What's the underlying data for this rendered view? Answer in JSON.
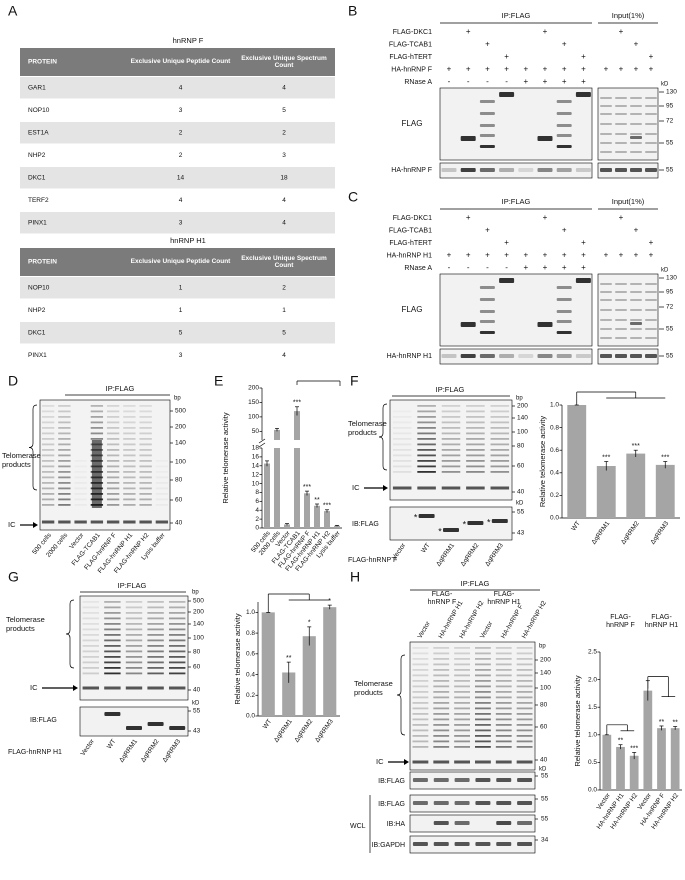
{
  "A": {
    "label": "A",
    "tables": [
      {
        "title": "hnRNP F",
        "header": [
          "PROTEIN",
          "Exclusive Unique Peptide Count",
          "Exclusive Unique Spectrum Count"
        ],
        "rows": [
          [
            "GAR1",
            4,
            4
          ],
          [
            "NOP10",
            3,
            5
          ],
          [
            "EST1A",
            2,
            2
          ],
          [
            "NHP2",
            2,
            3
          ],
          [
            "DKC1",
            14,
            18
          ],
          [
            "TERF2",
            4,
            4
          ],
          [
            "PINX1",
            3,
            4
          ]
        ]
      },
      {
        "title": "hnRNP H1",
        "header": [
          "PROTEIN",
          "Exclusive Unique Peptide Count",
          "Exclusive Unique Spectrum Count"
        ],
        "rows": [
          [
            "NOP10",
            1,
            2
          ],
          [
            "NHP2",
            1,
            1
          ],
          [
            "DKC1",
            5,
            5
          ],
          [
            "PINX1",
            3,
            4
          ]
        ]
      }
    ]
  },
  "B": {
    "label": "B",
    "ip": "IP:FLAG",
    "input": "Input(1%)",
    "conditions": [
      "FLAG-DKC1",
      "FLAG-TCAB1",
      "FLAG-hTERT",
      "HA-hnRNP F",
      "RNase A"
    ],
    "ip_signs": [
      [
        null,
        "+",
        null,
        null,
        null,
        "+",
        null,
        null
      ],
      [
        null,
        null,
        "+",
        null,
        null,
        null,
        "+",
        null
      ],
      [
        null,
        null,
        null,
        "+",
        null,
        null,
        null,
        "+"
      ],
      [
        "+",
        "+",
        "+",
        "+",
        "+",
        "+",
        "+",
        "+"
      ],
      [
        "-",
        "-",
        "-",
        "-",
        "+",
        "+",
        "+",
        "+"
      ]
    ],
    "input_signs": [
      [
        null,
        "+",
        null,
        null
      ],
      [
        null,
        null,
        "+",
        null
      ],
      [
        null,
        null,
        null,
        "+"
      ],
      [
        "+",
        "+",
        "+",
        "+"
      ]
    ],
    "blots": [
      "FLAG",
      "HA-hnRNP F"
    ],
    "kd": "kD",
    "markers": [
      130,
      95,
      72,
      55
    ],
    "markers_lower": [
      55
    ]
  },
  "C": {
    "label": "C",
    "ip": "IP:FLAG",
    "input": "Input(1%)",
    "conditions": [
      "FLAG-DKC1",
      "FLAG-TCAB1",
      "FLAG-hTERT",
      "HA-hnRNP H1",
      "RNase A"
    ],
    "ip_signs": [
      [
        null,
        "+",
        null,
        null,
        null,
        "+",
        null,
        null
      ],
      [
        null,
        null,
        "+",
        null,
        null,
        null,
        "+",
        null
      ],
      [
        null,
        null,
        null,
        "+",
        null,
        null,
        null,
        "+"
      ],
      [
        "+",
        "+",
        "+",
        "+",
        "+",
        "+",
        "+",
        "+"
      ],
      [
        "-",
        "-",
        "-",
        "-",
        "+",
        "+",
        "+",
        "+"
      ]
    ],
    "input_signs": [
      [
        null,
        "+",
        null,
        null
      ],
      [
        null,
        null,
        "+",
        null
      ],
      [
        null,
        null,
        null,
        "+"
      ],
      [
        "+",
        "+",
        "+",
        "+"
      ]
    ],
    "blots": [
      "FLAG",
      "HA-hnRNP H1"
    ],
    "kd": "kD",
    "markers": [
      130,
      95,
      72,
      55
    ],
    "markers_lower": [
      55
    ]
  },
  "D": {
    "label": "D",
    "ip": "IP:FLAG",
    "bp_label": "bp",
    "bp": [
      500,
      200,
      140,
      100,
      80,
      60,
      40
    ],
    "products": "Telomerase products",
    "ic": "IC",
    "lanes": [
      "500 cells",
      "2000 cells",
      "Vector",
      "FLAG-TCAB1",
      "FLAG-hnRNP F",
      "FLAG-hnRNP H1",
      "FLAG-hnRNP H2",
      "Lysis buffer"
    ]
  },
  "E": {
    "label": "E",
    "type": "bar",
    "ylabel": "Relative telomerase activity",
    "color": "#a5a5a5",
    "categories": [
      "500 cells",
      "2000 cells",
      "Vector",
      "FLAG-TCAB1",
      "FLAG-hnRNP F",
      "FLAG-hnRNP H1",
      "FLAG-hnRNP H2",
      "Lysis buffer"
    ],
    "values": [
      14.5,
      55,
      0.8,
      120,
      7.8,
      5.0,
      3.8,
      0.5
    ],
    "errors": [
      0.6,
      5,
      0.2,
      15,
      0.5,
      0.4,
      0.3,
      0.1
    ],
    "annotations": [
      null,
      null,
      null,
      "***",
      "***",
      "**",
      "***",
      null
    ],
    "segments": [
      {
        "ylim": [
          0,
          18
        ],
        "yticks": [
          0,
          2,
          4,
          6,
          8,
          10,
          12,
          14,
          16,
          18
        ]
      },
      {
        "ylim": [
          20,
          200
        ],
        "yticks": [
          50,
          100,
          150,
          200
        ]
      }
    ]
  },
  "F": {
    "label": "F",
    "ip": "IP:FLAG",
    "bp_label": "bp",
    "bp": [
      200,
      140,
      100,
      80,
      60,
      40
    ],
    "products": "Telomerase products",
    "ic": "IC",
    "kd": "kD",
    "kd_markers": [
      55,
      43
    ],
    "blot": "IB:FLAG",
    "stars": [
      "*",
      "*",
      "*",
      "*"
    ],
    "construct": "FLAG-hnRNP F",
    "lanes": [
      "Vector",
      "WT",
      "ΔqRRM1",
      "ΔqRRM2",
      "ΔqRRM3"
    ],
    "chart": {
      "type": "bar",
      "ylabel": "Relative telomerase activity",
      "color": "#a5a5a5",
      "categories": [
        "WT",
        "ΔqRRM1",
        "ΔqRRM2",
        "ΔqRRM3"
      ],
      "values": [
        1.0,
        0.46,
        0.57,
        0.47
      ],
      "errors": [
        0,
        0.04,
        0.03,
        0.03
      ],
      "annotations": [
        null,
        "***",
        "***",
        "***"
      ],
      "ylim": [
        0,
        1.0
      ],
      "yticks": [
        {
          "value": 0,
          "label": "0.0"
        },
        0.2,
        0.4,
        0.6,
        0.8,
        {
          "value": 1,
          "label": "1.0"
        }
      ]
    }
  },
  "G": {
    "label": "G",
    "ip": "IP:FLAG",
    "bp_label": "bp",
    "bp": [
      500,
      200,
      140,
      100,
      80,
      60,
      40
    ],
    "products": "Telomerase products",
    "ic": "IC",
    "kd": "kD",
    "kd_markers": [
      55,
      43
    ],
    "blot": "IB:FLAG",
    "construct": "FLAG-hnRNP H1",
    "lanes": [
      "Vector",
      "WT",
      "ΔqRRM1",
      "ΔqRRM2",
      "ΔqRRM3"
    ],
    "chart": {
      "type": "bar",
      "ylabel": "Relative telomerase activity",
      "color": "#a5a5a5",
      "categories": [
        "WT",
        "ΔqRRM1",
        "ΔqRRM2",
        "ΔqRRM3"
      ],
      "values": [
        1.0,
        0.42,
        0.77,
        1.05
      ],
      "errors": [
        0,
        0.1,
        0.09,
        0.02
      ],
      "annotations": [
        null,
        "**",
        "*",
        "*"
      ],
      "ylim": [
        0,
        1.1
      ],
      "yticks": [
        {
          "value": 0,
          "label": "0.0"
        },
        0.2,
        0.4,
        0.6,
        0.8,
        {
          "value": 1,
          "label": "1.0"
        }
      ]
    }
  },
  "H": {
    "label": "H",
    "ip": "IP:FLAG",
    "groups": [
      "FLAG-hnRNP F",
      "FLAG-hnRNP H1"
    ],
    "lanes": [
      "Vector",
      "HA-hnRNP H1",
      "HA-hnRNP H2",
      "Vector",
      "HA-hnRNP F",
      "HA-hnRNP H2"
    ],
    "bp_label": "bp",
    "bp": [
      200,
      140,
      100,
      80,
      60,
      40
    ],
    "products": "Telomerase products",
    "ic": "IC",
    "kd": "kD",
    "blots": [
      {
        "name": "IB:FLAG",
        "marker": 55
      }
    ],
    "wcl": "WCL",
    "wcl_blots": [
      {
        "name": "IB:FLAG",
        "marker": 55
      },
      {
        "name": "IB:HA",
        "marker": 55
      },
      {
        "name": "IB:GAPDH",
        "marker": 34
      }
    ],
    "chart": {
      "type": "bar",
      "ylabel": "Relative telomerase activity",
      "color": "#a5a5a5",
      "groups": [
        "FLAG-hnRNP F",
        "FLAG-hnRNP H1"
      ],
      "categories": [
        "Vector",
        "HA-hnRNP H1",
        "HA-hnRNP H2",
        "Vector",
        "HA-hnRNP F",
        "HA-hnRNP H2"
      ],
      "values": [
        1.0,
        0.78,
        0.62,
        1.8,
        1.12,
        1.12
      ],
      "errors": [
        0,
        0.04,
        0.06,
        0.18,
        0.04,
        0.03
      ],
      "annotations": [
        null,
        "**",
        "***",
        null,
        "**",
        "**"
      ],
      "ylim": [
        0,
        2.5
      ],
      "yticks": [
        {
          "value": 0,
          "label": "0.0"
        },
        0.5,
        {
          "value": 1,
          "label": "1.0"
        },
        1.5,
        {
          "value": 2,
          "label": "2.0"
        },
        2.5
      ]
    }
  }
}
